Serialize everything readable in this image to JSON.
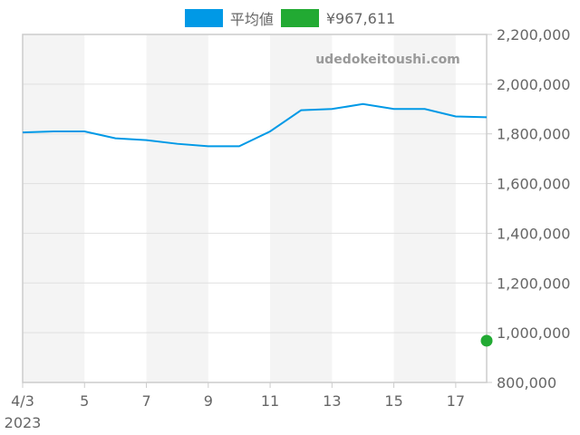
{
  "chart_data": {
    "type": "line",
    "title": "",
    "watermark": "udedokeitoushi.com",
    "legend": [
      {
        "name": "平均値",
        "color": "#0099e6"
      },
      {
        "name": "¥967,611",
        "color": "#22aa33"
      }
    ],
    "x": [
      "4/3",
      "4/4",
      "4/5",
      "4/6",
      "4/7",
      "4/8",
      "4/9",
      "4/10",
      "4/11",
      "4/12",
      "4/13",
      "4/14",
      "4/15",
      "4/16",
      "4/17",
      "4/18"
    ],
    "x_tick_labels": [
      "4/3",
      "5",
      "7",
      "9",
      "11",
      "13",
      "15",
      "17"
    ],
    "x_year_label": "2023",
    "y_tick_labels": [
      "2,200,000",
      "2,000,000",
      "1,800,000",
      "1,600,000",
      "1,400,000",
      "1,200,000",
      "1,000,000",
      "800,000"
    ],
    "ylim": [
      800000,
      2200000
    ],
    "series": [
      {
        "name": "平均値",
        "values": [
          1806000,
          1810000,
          1810000,
          1782000,
          1775000,
          1760000,
          1750000,
          1750000,
          1810000,
          1895000,
          1900000,
          1920000,
          1900000,
          1900000,
          1870000,
          1867000
        ]
      },
      {
        "name": "¥967,611",
        "points": [
          {
            "x": "4/18",
            "y": 967611
          }
        ]
      }
    ],
    "xlabel": "",
    "ylabel": "",
    "grid": true,
    "legend_position": "top"
  }
}
